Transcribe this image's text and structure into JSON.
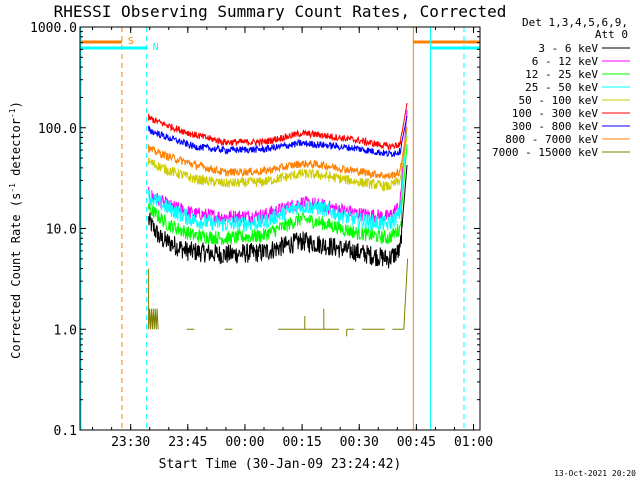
{
  "chart_data": {
    "type": "line",
    "title": "RHESSI Observing Summary Count Rates, Corrected",
    "xlabel": "Start Time (30-Jan-09 23:24:42)",
    "ylabel_main": "Corrected Count Rate (s",
    "ylabel_sup1": "-1",
    "ylabel_mid": " detector",
    "ylabel_sup2": "-1",
    "ylabel_end": ")",
    "yscale": "log",
    "ylim": [
      0.1,
      1000.0
    ],
    "xlim_minutes": [
      -8.0,
      97.0
    ],
    "x_ticks": [
      {
        "label": "23:30",
        "min": 5.3
      },
      {
        "label": "23:45",
        "min": 20.3
      },
      {
        "label": "00:00",
        "min": 35.3
      },
      {
        "label": "00:15",
        "min": 50.3
      },
      {
        "label": "00:30",
        "min": 65.3
      },
      {
        "label": "00:45",
        "min": 80.3
      },
      {
        "label": "01:00",
        "min": 95.3
      }
    ],
    "y_ticks": [
      {
        "label": "1000.0",
        "value": 1000
      },
      {
        "label": "100.0",
        "value": 100
      },
      {
        "label": "10.0",
        "value": 10
      },
      {
        "label": "1.0",
        "value": 1
      },
      {
        "label": "0.1",
        "value": 0.1
      }
    ],
    "legend": {
      "position": "right",
      "header_line1": "Det 1,3,4,5,6,9,",
      "header_line2": "Att 0",
      "entries": [
        "3 - 6 keV",
        "6 - 12 keV",
        "12 - 25 keV",
        "25 - 50 keV",
        "50 - 100 keV",
        "100 - 300 keV",
        "300 - 800 keV",
        "800 - 7000 keV",
        "7000 - 15000 keV"
      ]
    },
    "series": [
      {
        "name": "3 - 6 keV",
        "color": "#000000",
        "points": [
          [
            10,
            12
          ],
          [
            13,
            8
          ],
          [
            20,
            6
          ],
          [
            30,
            5.5
          ],
          [
            40,
            5.8
          ],
          [
            50,
            7.5
          ],
          [
            55,
            7
          ],
          [
            65,
            5.8
          ],
          [
            73,
            5.0
          ],
          [
            76,
            6
          ],
          [
            78,
            50
          ]
        ]
      },
      {
        "name": "6 - 12 keV",
        "color": "#ff00ff",
        "points": [
          [
            10,
            22
          ],
          [
            15,
            17
          ],
          [
            22,
            14
          ],
          [
            30,
            13
          ],
          [
            40,
            13.5
          ],
          [
            50,
            18
          ],
          [
            55,
            17
          ],
          [
            65,
            14
          ],
          [
            73,
            13
          ],
          [
            76,
            17
          ],
          [
            78,
            180
          ]
        ]
      },
      {
        "name": "12 - 25 keV",
        "color": "#00ff00",
        "points": [
          [
            10,
            16
          ],
          [
            15,
            11
          ],
          [
            22,
            8.5
          ],
          [
            30,
            8
          ],
          [
            40,
            8.5
          ],
          [
            50,
            12.5
          ],
          [
            55,
            11.5
          ],
          [
            65,
            9
          ],
          [
            73,
            8
          ],
          [
            76,
            10
          ],
          [
            78,
            80
          ]
        ]
      },
      {
        "name": "25 - 50 keV",
        "color": "#00ffff",
        "points": [
          [
            10,
            21
          ],
          [
            15,
            16
          ],
          [
            22,
            12
          ],
          [
            30,
            11
          ],
          [
            40,
            11.5
          ],
          [
            50,
            17
          ],
          [
            55,
            16
          ],
          [
            65,
            12
          ],
          [
            73,
            11
          ],
          [
            76,
            14
          ],
          [
            78,
            120
          ]
        ]
      },
      {
        "name": "50 - 100 keV",
        "color": "#cccc00",
        "points": [
          [
            10,
            46
          ],
          [
            15,
            38
          ],
          [
            22,
            31
          ],
          [
            30,
            28
          ],
          [
            40,
            29
          ],
          [
            50,
            35
          ],
          [
            55,
            34
          ],
          [
            65,
            29
          ],
          [
            73,
            26
          ],
          [
            76,
            30
          ],
          [
            78,
            90
          ]
        ]
      },
      {
        "name": "100 - 300 keV",
        "color": "#ff0000",
        "points": [
          [
            10,
            125
          ],
          [
            15,
            105
          ],
          [
            22,
            85
          ],
          [
            30,
            72
          ],
          [
            40,
            72
          ],
          [
            50,
            88
          ],
          [
            55,
            85
          ],
          [
            65,
            75
          ],
          [
            73,
            65
          ],
          [
            76,
            68
          ],
          [
            78,
            190
          ]
        ]
      },
      {
        "name": "300 - 800 keV",
        "color": "#0000ff",
        "points": [
          [
            10,
            95
          ],
          [
            15,
            80
          ],
          [
            22,
            65
          ],
          [
            30,
            60
          ],
          [
            40,
            61
          ],
          [
            50,
            70
          ],
          [
            55,
            68
          ],
          [
            65,
            62
          ],
          [
            73,
            55
          ],
          [
            76,
            58
          ],
          [
            78,
            140
          ]
        ]
      },
      {
        "name": "800 - 7000 keV",
        "color": "#ff8000",
        "points": [
          [
            10,
            62
          ],
          [
            15,
            52
          ],
          [
            22,
            43
          ],
          [
            30,
            36
          ],
          [
            40,
            37
          ],
          [
            50,
            44
          ],
          [
            55,
            43
          ],
          [
            65,
            37
          ],
          [
            73,
            33
          ],
          [
            76,
            36
          ],
          [
            78,
            110
          ]
        ]
      },
      {
        "name": "7000 - 15000 keV",
        "color": "#808000",
        "points": [
          [
            10,
            1.0
          ],
          [
            78,
            1.0
          ]
        ]
      }
    ],
    "flags": [
      {
        "label": "S",
        "color": "#ff8000",
        "bars_minutes": [
          [
            -8,
            3.0
          ],
          [
            79.5,
            97
          ]
        ]
      },
      {
        "label": "N",
        "color": "#00ffff",
        "bars_minutes": [
          [
            -8,
            9.5
          ],
          [
            84,
            97
          ]
        ]
      }
    ],
    "annotation": "13-Oct-2021 20:20"
  }
}
